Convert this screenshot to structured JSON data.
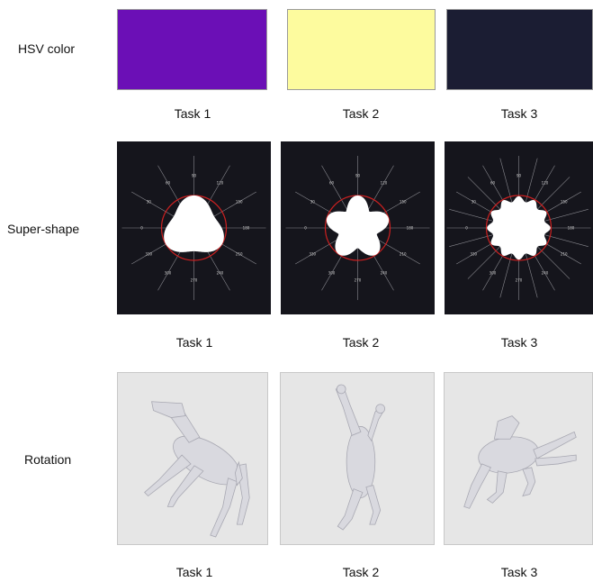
{
  "rows": [
    {
      "label": "HSV color",
      "tasks": [
        "Task 1",
        "Task 2",
        "Task 3"
      ],
      "colors": [
        "#6b0fb6",
        "#fdfb9e",
        "#1b1d33"
      ]
    },
    {
      "label": "Super-shape",
      "tasks": [
        "Task 1",
        "Task 2",
        "Task 3"
      ]
    },
    {
      "label": "Rotation",
      "tasks": [
        "Task 1",
        "Task 2",
        "Task 3"
      ]
    }
  ],
  "polar_ticks": [
    "90",
    "60",
    "30",
    "0",
    "330",
    "300",
    "270",
    "240",
    "210",
    "180",
    "150",
    "120"
  ],
  "colors": {
    "shape_background": "#15151c",
    "shape_fill": "#ffffff",
    "guide_circle": "#cc2020",
    "rotation_background": "#e6e6e6",
    "model": "#d8d8de"
  }
}
